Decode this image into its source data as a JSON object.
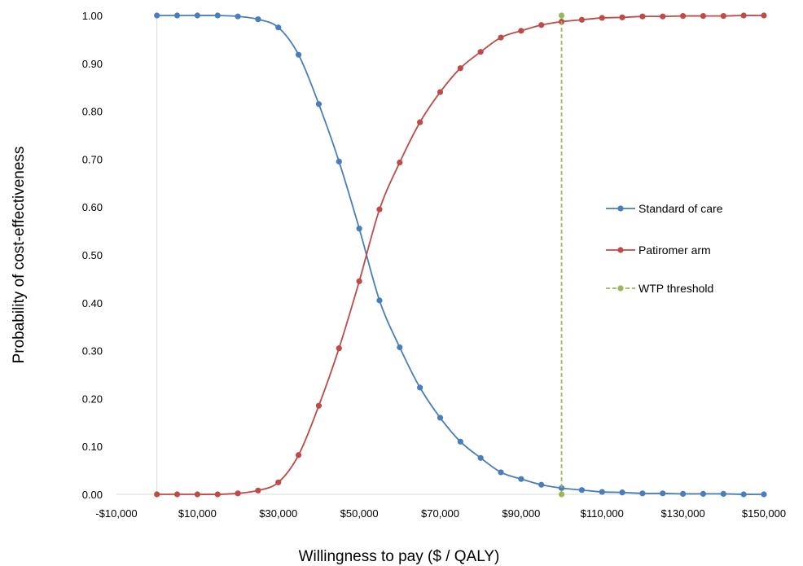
{
  "chart_data": {
    "type": "line",
    "title": "",
    "xlabel": "Willingness to pay ($ / QALY)",
    "ylabel": "Probability of cost-effectiveness",
    "xlim": [
      -10000,
      150000
    ],
    "ylim": [
      0,
      1
    ],
    "x_ticks": [
      -10000,
      10000,
      30000,
      50000,
      70000,
      90000,
      110000,
      130000,
      150000
    ],
    "x_tick_labels": [
      "-$10,000",
      "$10,000",
      "$30,000",
      "$50,000",
      "$70,000",
      "$90,000",
      "$110,000",
      "$130,000",
      "$150,000"
    ],
    "y_ticks": [
      0,
      0.1,
      0.2,
      0.3,
      0.4,
      0.5,
      0.6,
      0.7,
      0.8,
      0.9,
      1.0
    ],
    "y_tick_labels": [
      "0.00",
      "0.10",
      "0.20",
      "0.30",
      "0.40",
      "0.50",
      "0.60",
      "0.70",
      "0.80",
      "0.90",
      "1.00"
    ],
    "grid": false,
    "legend_position": "right",
    "x": [
      0,
      5000,
      10000,
      15000,
      20000,
      25000,
      30000,
      35000,
      40000,
      45000,
      50000,
      55000,
      60000,
      65000,
      70000,
      75000,
      80000,
      85000,
      90000,
      95000,
      100000,
      105000,
      110000,
      115000,
      120000,
      125000,
      130000,
      135000,
      140000,
      145000,
      150000
    ],
    "series": [
      {
        "name": "Standard of care",
        "color": "#4a7ebb",
        "values": [
          1.0,
          1.0,
          1.0,
          1.0,
          0.998,
          0.992,
          0.975,
          0.918,
          0.815,
          0.695,
          0.555,
          0.405,
          0.307,
          0.223,
          0.16,
          0.11,
          0.076,
          0.046,
          0.032,
          0.02,
          0.013,
          0.009,
          0.005,
          0.004,
          0.002,
          0.002,
          0.001,
          0.001,
          0.001,
          0.0,
          0.0
        ]
      },
      {
        "name": "Patiromer arm",
        "color": "#be4b48",
        "values": [
          0.0,
          0.0,
          0.0,
          0.0,
          0.002,
          0.008,
          0.025,
          0.082,
          0.185,
          0.305,
          0.445,
          0.595,
          0.693,
          0.777,
          0.84,
          0.89,
          0.924,
          0.954,
          0.968,
          0.98,
          0.987,
          0.991,
          0.995,
          0.996,
          0.998,
          0.998,
          0.999,
          0.999,
          0.999,
          1.0,
          1.0
        ]
      },
      {
        "name": "WTP threshold",
        "color": "#98b954",
        "style": "dashed",
        "x": [
          100000,
          100000
        ],
        "values": [
          0,
          1
        ]
      }
    ]
  }
}
